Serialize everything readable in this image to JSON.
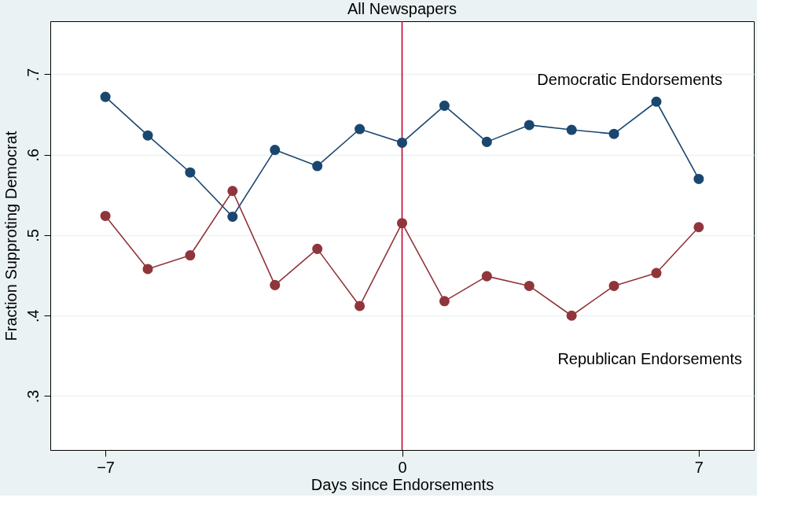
{
  "chart_data": {
    "type": "line",
    "title": "All Newspapers",
    "xlabel": "Days since Endorsements",
    "ylabel": "Fraction Supproting Democrat",
    "x": [
      -7,
      -6,
      -5,
      -4,
      -3,
      -2,
      -1,
      0,
      1,
      2,
      3,
      4,
      5,
      6,
      7
    ],
    "series": [
      {
        "color": "#1a476f",
        "values": [
          0.672,
          0.624,
          0.578,
          0.523,
          0.606,
          0.586,
          0.632,
          0.615,
          0.661,
          0.616,
          0.637,
          0.631,
          0.626,
          0.666,
          0.57
        ]
      },
      {
        "color": "#90353b",
        "values": [
          0.524,
          0.458,
          0.475,
          0.555,
          0.438,
          0.483,
          0.412,
          0.515,
          0.418,
          0.449,
          0.437,
          0.4,
          0.437,
          0.453,
          0.51
        ]
      }
    ],
    "xlim": [
      -8.3,
      8.3
    ],
    "ylim": [
      0.233,
      0.766
    ],
    "xticks": [
      -7,
      0,
      7
    ],
    "yticks": [
      {
        "value": 0.3,
        "label": ".3"
      },
      {
        "value": 0.4,
        "label": ".4"
      },
      {
        "value": 0.5,
        "label": ".5"
      },
      {
        "value": 0.6,
        "label": ".6"
      },
      {
        "value": 0.7,
        "label": ".7"
      }
    ],
    "ref_lines": [
      {
        "axis": "x",
        "value": 0,
        "label": null,
        "color": "#c10534"
      }
    ],
    "annotations": [
      "Democratic Endorsements",
      "Republican Endorsements"
    ],
    "grid": "y",
    "marker": "circle"
  }
}
